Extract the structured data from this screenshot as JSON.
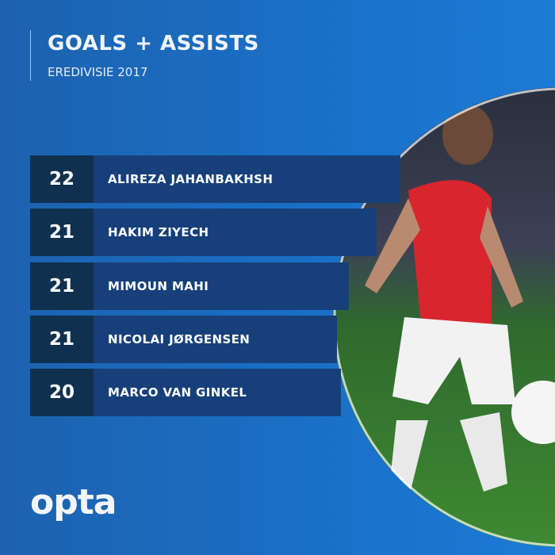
{
  "header": {
    "title": "GOALS + ASSISTS",
    "subtitle": "EREDIVISIE 2017"
  },
  "rankings": [
    {
      "value": "22",
      "name": "ALIREZA JAHANBAKHSH"
    },
    {
      "value": "21",
      "name": "HAKIM ZIYECH"
    },
    {
      "value": "21",
      "name": "MIMOUN MAHI"
    },
    {
      "value": "21",
      "name": "NICOLAI JØRGENSEN"
    },
    {
      "value": "20",
      "name": "MARCO VAN GINKEL"
    }
  ],
  "logo": "opta",
  "colors": {
    "background": "#1a6ec4",
    "bar": "#17407a",
    "number_box": "#10304f"
  }
}
